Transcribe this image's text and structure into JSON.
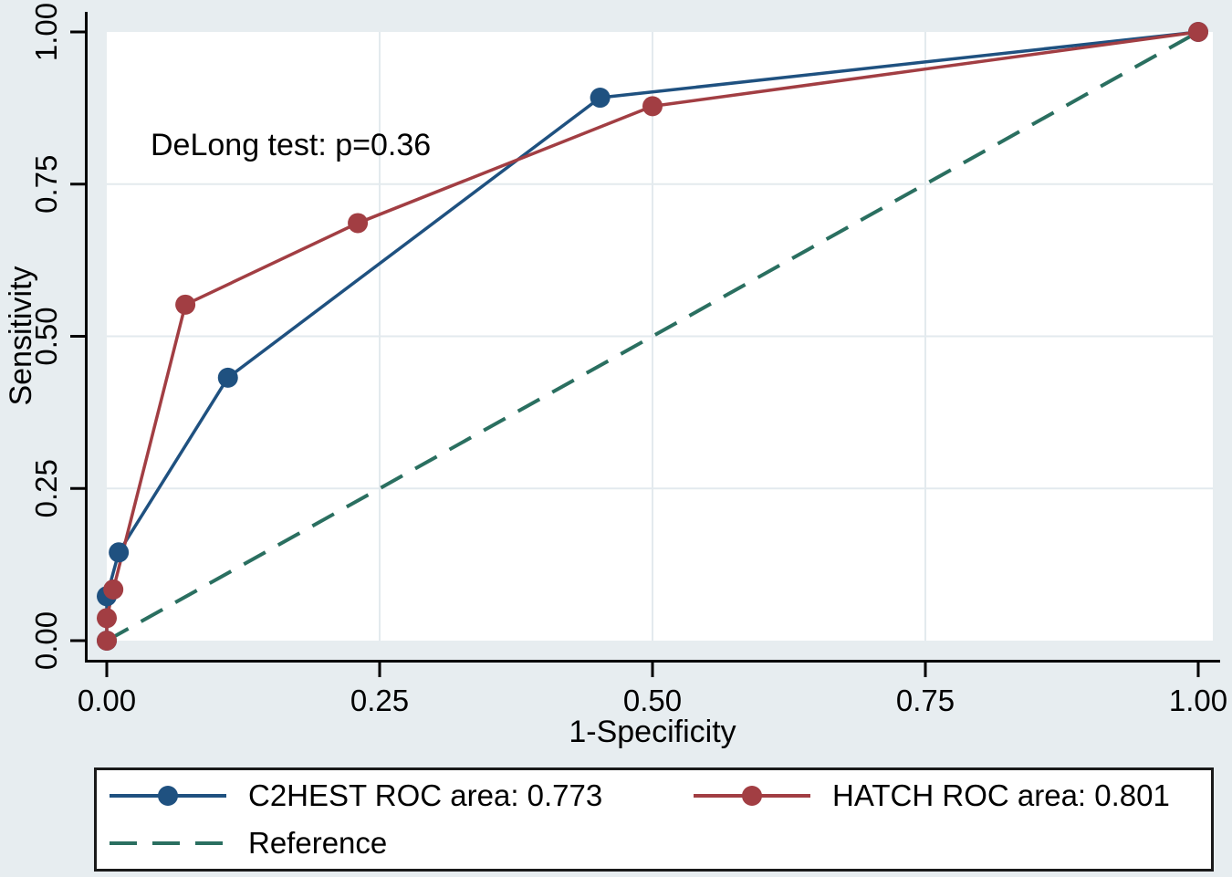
{
  "figure": {
    "colors": {
      "background": "#e7edf0",
      "plot_background": "#ffffff",
      "gridline": "#e3eaee",
      "axis": "#000000",
      "legend_background": "#ffffff",
      "legend_border": "#1a1a1a"
    }
  },
  "chart_data": {
    "type": "line",
    "title": "",
    "xlabel": "1-Specificity",
    "ylabel": "Sensitivity",
    "xlim": [
      0,
      1
    ],
    "ylim": [
      0,
      1
    ],
    "grid": true,
    "x_ticks": {
      "values": [
        0,
        0.25,
        0.5,
        0.75,
        1
      ],
      "labels": [
        "0.00",
        "0.25",
        "0.50",
        "0.75",
        "1.00"
      ]
    },
    "y_ticks": {
      "values": [
        0,
        0.25,
        0.5,
        0.75,
        1
      ],
      "labels": [
        "0.00",
        "0.25",
        "0.50",
        "0.75",
        "1.00"
      ]
    },
    "annotation": {
      "text": "DeLong test: p=0.36"
    },
    "legend": {
      "position": "bottom-left",
      "rows": 2
    },
    "series": [
      {
        "name": "C2HEST ROC area: 0.773",
        "color": "#1f5180",
        "style": "solid",
        "marker": "circle",
        "points": [
          [
            0,
            0
          ],
          [
            0,
            0.073
          ],
          [
            0.011,
            0.145
          ],
          [
            0.111,
            0.432
          ],
          [
            0.452,
            0.892
          ],
          [
            1,
            1
          ]
        ]
      },
      {
        "name": "HATCH ROC area: 0.801",
        "color": "#a23e43",
        "style": "solid",
        "marker": "circle",
        "points": [
          [
            0,
            0
          ],
          [
            0,
            0.037
          ],
          [
            0.006,
            0.084
          ],
          [
            0.072,
            0.552
          ],
          [
            0.23,
            0.686
          ],
          [
            0.5,
            0.878
          ],
          [
            1,
            1
          ]
        ]
      },
      {
        "name": "Reference",
        "color": "#2a6f60",
        "style": "dashed",
        "marker": "none",
        "points": [
          [
            0,
            0
          ],
          [
            1,
            1
          ]
        ]
      }
    ]
  }
}
